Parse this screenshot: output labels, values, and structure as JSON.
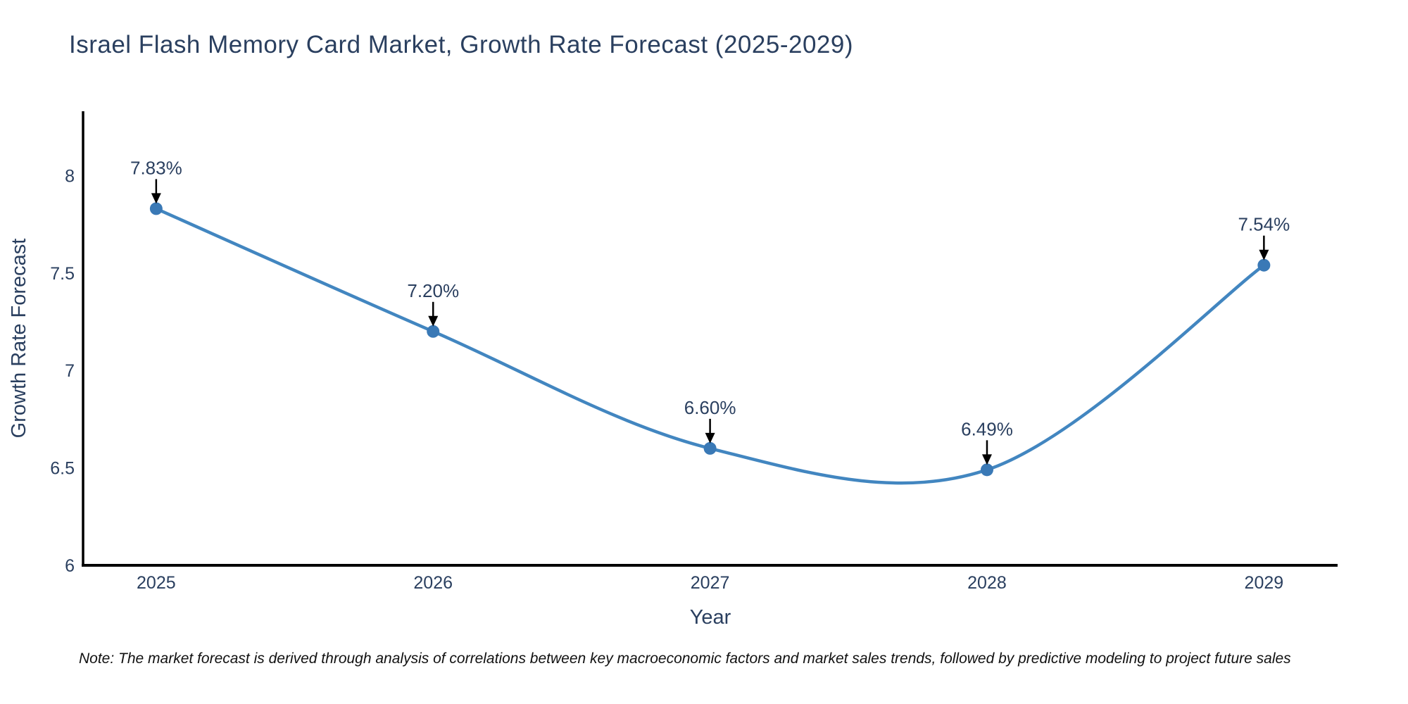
{
  "title": "Israel Flash Memory Card Market, Growth Rate Forecast (2025-2029)",
  "note": "Note: The market forecast is derived through analysis of correlations between key macroeconomic factors and market sales trends, followed by predictive modeling to project future sales",
  "chart_data": {
    "type": "line",
    "title": "Israel Flash Memory Card Market, Growth Rate Forecast (2025-2029)",
    "xlabel": "Year",
    "ylabel": "Growth Rate Forecast",
    "categories": [
      2025,
      2026,
      2027,
      2028,
      2029
    ],
    "values": [
      7.83,
      7.2,
      6.6,
      6.49,
      7.54
    ],
    "point_labels": [
      "7.83%",
      "7.20%",
      "6.60%",
      "6.49%",
      "7.54%"
    ],
    "yticks": [
      6,
      6.5,
      7,
      7.5,
      8
    ],
    "ylim": [
      6,
      8.33
    ],
    "xlim": [
      2024.736,
      2029.266
    ],
    "grid": false,
    "legend_position": "none",
    "line_style": "smooth",
    "annotation_style": "value-label-with-down-arrow",
    "colors": {
      "line": "#4286c0",
      "marker": "#3a79b6",
      "axis": "#000000",
      "arrow": "#000000",
      "text": "#2a3f5f",
      "background": "#ffffff"
    }
  }
}
